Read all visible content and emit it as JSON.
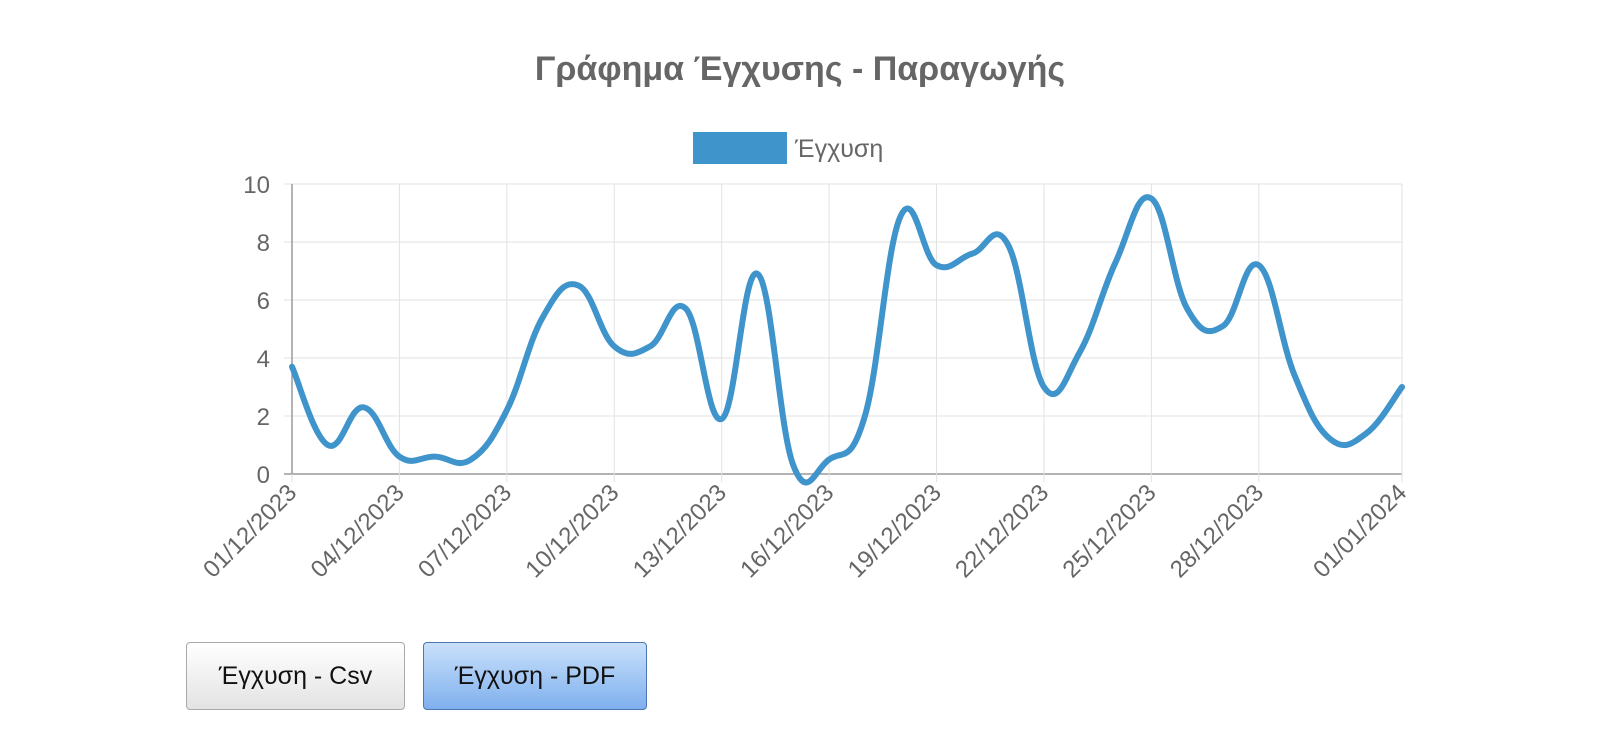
{
  "chart_data": {
    "type": "line",
    "title": "Γράφημα Έγχυσης - Παραγωγής",
    "legend": {
      "position": "top",
      "entries": [
        "Έγχυση"
      ]
    },
    "x": [
      "01/12/2023",
      "02/12/2023",
      "03/12/2023",
      "04/12/2023",
      "05/12/2023",
      "06/12/2023",
      "07/12/2023",
      "08/12/2023",
      "09/12/2023",
      "10/12/2023",
      "11/12/2023",
      "12/12/2023",
      "13/12/2023",
      "14/12/2023",
      "15/12/2023",
      "16/12/2023",
      "17/12/2023",
      "18/12/2023",
      "19/12/2023",
      "20/12/2023",
      "21/12/2023",
      "22/12/2023",
      "23/12/2023",
      "24/12/2023",
      "25/12/2023",
      "26/12/2023",
      "27/12/2023",
      "28/12/2023",
      "29/12/2023",
      "30/12/2023",
      "31/12/2023",
      "01/01/2024"
    ],
    "x_tick_labels": [
      "01/12/2023",
      "04/12/2023",
      "07/12/2023",
      "10/12/2023",
      "13/12/2023",
      "16/12/2023",
      "19/12/2023",
      "22/12/2023",
      "25/12/2023",
      "28/12/2023",
      "01/01/2024"
    ],
    "series": [
      {
        "name": "Έγχυση",
        "color": "#3f94cc",
        "values": [
          3.7,
          1.0,
          2.3,
          0.6,
          0.6,
          0.5,
          2.2,
          5.4,
          6.5,
          4.4,
          4.4,
          5.7,
          1.9,
          6.9,
          0.3,
          0.5,
          2.0,
          8.9,
          7.2,
          7.6,
          7.9,
          3.0,
          4.2,
          7.3,
          9.5,
          5.7,
          5.1,
          7.2,
          3.4,
          1.2,
          1.4,
          3.0
        ]
      }
    ],
    "ylim": [
      0,
      10
    ],
    "y_ticks": [
      0,
      2,
      4,
      6,
      8,
      10
    ],
    "grid": true,
    "xlabel": "",
    "ylabel": ""
  },
  "buttons": {
    "csv_label": "Έγχυση - Csv",
    "pdf_label": "Έγχυση - PDF"
  }
}
